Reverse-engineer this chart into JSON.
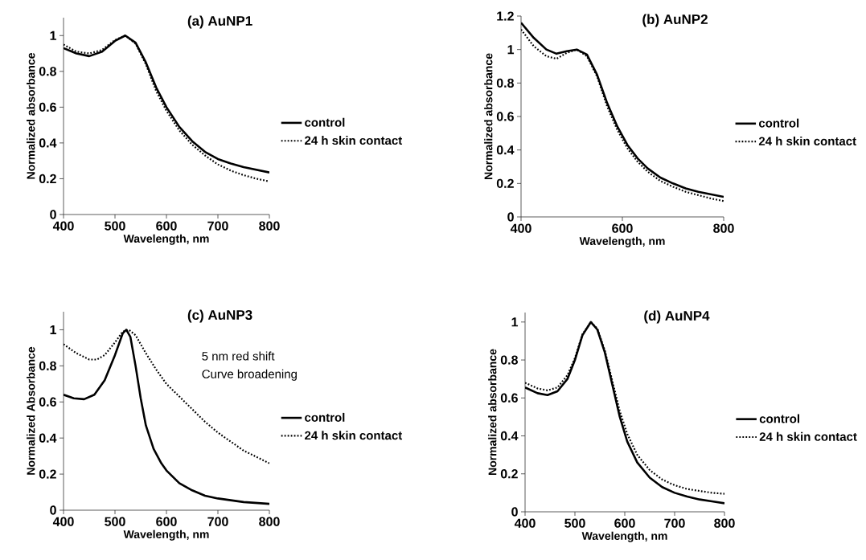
{
  "chart_data": [
    {
      "type": "line",
      "title": "(a) AuNP1",
      "xlabel": "Wavelength, nm",
      "ylabel": "Normalized absorbance",
      "xlim": [
        400,
        800
      ],
      "ylim": [
        0,
        1.1
      ],
      "xticks": [
        400,
        500,
        600,
        700,
        800
      ],
      "yticks": [
        0,
        0.2,
        0.4,
        0.6,
        0.8,
        1
      ],
      "legend": "right",
      "series": [
        {
          "name": "control",
          "color": "#000000",
          "line_style": "solid",
          "x": [
            400,
            425,
            450,
            475,
            500,
            520,
            540,
            560,
            580,
            600,
            625,
            650,
            675,
            700,
            725,
            750,
            775,
            800
          ],
          "values": [
            0.93,
            0.9,
            0.885,
            0.91,
            0.97,
            1.0,
            0.96,
            0.85,
            0.71,
            0.6,
            0.49,
            0.41,
            0.35,
            0.31,
            0.285,
            0.265,
            0.25,
            0.235
          ]
        },
        {
          "name": "24 h skin contact",
          "color": "#000000",
          "line_style": "dotted",
          "x": [
            400,
            425,
            450,
            475,
            500,
            520,
            540,
            560,
            580,
            600,
            625,
            650,
            675,
            700,
            725,
            750,
            775,
            800
          ],
          "values": [
            0.95,
            0.91,
            0.9,
            0.92,
            0.975,
            1.0,
            0.955,
            0.84,
            0.69,
            0.58,
            0.47,
            0.39,
            0.33,
            0.28,
            0.245,
            0.22,
            0.2,
            0.185
          ]
        }
      ]
    },
    {
      "type": "line",
      "title": "(b) AuNP2",
      "xlabel": "Wavelength, nm",
      "ylabel": "Normalized absorbance",
      "xlim": [
        400,
        800
      ],
      "ylim": [
        0,
        1.2
      ],
      "xticks": [
        400,
        600,
        800
      ],
      "yticks": [
        0,
        0.2,
        0.4,
        0.6,
        0.8,
        1,
        1.2
      ],
      "legend": "right",
      "series": [
        {
          "name": "control",
          "color": "#000000",
          "line_style": "solid",
          "x": [
            400,
            425,
            450,
            470,
            490,
            510,
            530,
            550,
            570,
            590,
            610,
            630,
            650,
            675,
            700,
            725,
            750,
            775,
            800
          ],
          "values": [
            1.16,
            1.07,
            1.0,
            0.975,
            0.99,
            1.0,
            0.97,
            0.85,
            0.68,
            0.54,
            0.43,
            0.35,
            0.29,
            0.235,
            0.2,
            0.17,
            0.15,
            0.135,
            0.12
          ]
        },
        {
          "name": "24 h skin contact",
          "color": "#000000",
          "line_style": "dotted",
          "x": [
            400,
            425,
            450,
            470,
            490,
            510,
            530,
            550,
            570,
            590,
            610,
            630,
            650,
            675,
            700,
            725,
            750,
            775,
            800
          ],
          "values": [
            1.12,
            1.02,
            0.96,
            0.945,
            0.98,
            1.0,
            0.96,
            0.84,
            0.66,
            0.52,
            0.41,
            0.33,
            0.27,
            0.215,
            0.18,
            0.15,
            0.13,
            0.11,
            0.095
          ]
        }
      ]
    },
    {
      "type": "line",
      "title": "(c) AuNP3",
      "xlabel": "Wavelength, nm",
      "ylabel": "Normalized Absorbance",
      "xlim": [
        400,
        800
      ],
      "ylim": [
        0,
        1.1
      ],
      "xticks": [
        400,
        500,
        600,
        700,
        800
      ],
      "yticks": [
        0,
        0.2,
        0.4,
        0.6,
        0.8,
        1
      ],
      "legend": "right",
      "annotations": [
        "5 nm red shift",
        "Curve broadening"
      ],
      "series": [
        {
          "name": "control",
          "color": "#000000",
          "line_style": "solid",
          "x": [
            400,
            420,
            440,
            460,
            480,
            500,
            515,
            522,
            530,
            540,
            550,
            560,
            575,
            590,
            600,
            625,
            650,
            675,
            700,
            750,
            800
          ],
          "values": [
            0.64,
            0.62,
            0.615,
            0.64,
            0.72,
            0.86,
            0.98,
            1.0,
            0.96,
            0.8,
            0.62,
            0.47,
            0.34,
            0.26,
            0.22,
            0.15,
            0.11,
            0.08,
            0.065,
            0.045,
            0.035
          ]
        },
        {
          "name": "24 h skin contact",
          "color": "#000000",
          "line_style": "dotted",
          "x": [
            400,
            425,
            450,
            465,
            480,
            500,
            515,
            527,
            540,
            560,
            580,
            600,
            625,
            650,
            675,
            700,
            725,
            750,
            775,
            800
          ],
          "values": [
            0.92,
            0.87,
            0.835,
            0.835,
            0.86,
            0.93,
            0.99,
            1.0,
            0.97,
            0.87,
            0.78,
            0.7,
            0.63,
            0.56,
            0.49,
            0.43,
            0.38,
            0.33,
            0.295,
            0.26
          ]
        }
      ]
    },
    {
      "type": "line",
      "title": "(d) AuNP4",
      "xlabel": "Wavelength, nm",
      "ylabel": "Normalized absorbance",
      "xlim": [
        400,
        800
      ],
      "ylim": [
        0,
        1.05
      ],
      "xticks": [
        400,
        500,
        600,
        700,
        800
      ],
      "yticks": [
        0,
        0.2,
        0.4,
        0.6,
        0.8,
        1
      ],
      "legend": "right",
      "series": [
        {
          "name": "control",
          "color": "#000000",
          "line_style": "solid",
          "x": [
            400,
            425,
            445,
            465,
            485,
            500,
            515,
            532,
            545,
            560,
            575,
            590,
            605,
            625,
            650,
            675,
            700,
            725,
            750,
            775,
            800
          ],
          "values": [
            0.655,
            0.625,
            0.615,
            0.635,
            0.7,
            0.8,
            0.93,
            1.0,
            0.96,
            0.84,
            0.67,
            0.5,
            0.37,
            0.26,
            0.18,
            0.13,
            0.1,
            0.08,
            0.065,
            0.055,
            0.045
          ]
        },
        {
          "name": "24 h skin contact",
          "color": "#000000",
          "line_style": "dotted",
          "x": [
            400,
            425,
            445,
            465,
            485,
            500,
            515,
            532,
            545,
            560,
            575,
            590,
            605,
            625,
            650,
            675,
            700,
            725,
            750,
            775,
            800
          ],
          "values": [
            0.68,
            0.65,
            0.64,
            0.655,
            0.72,
            0.81,
            0.935,
            1.0,
            0.965,
            0.85,
            0.69,
            0.53,
            0.41,
            0.3,
            0.22,
            0.17,
            0.14,
            0.12,
            0.11,
            0.1,
            0.095
          ]
        }
      ]
    }
  ]
}
